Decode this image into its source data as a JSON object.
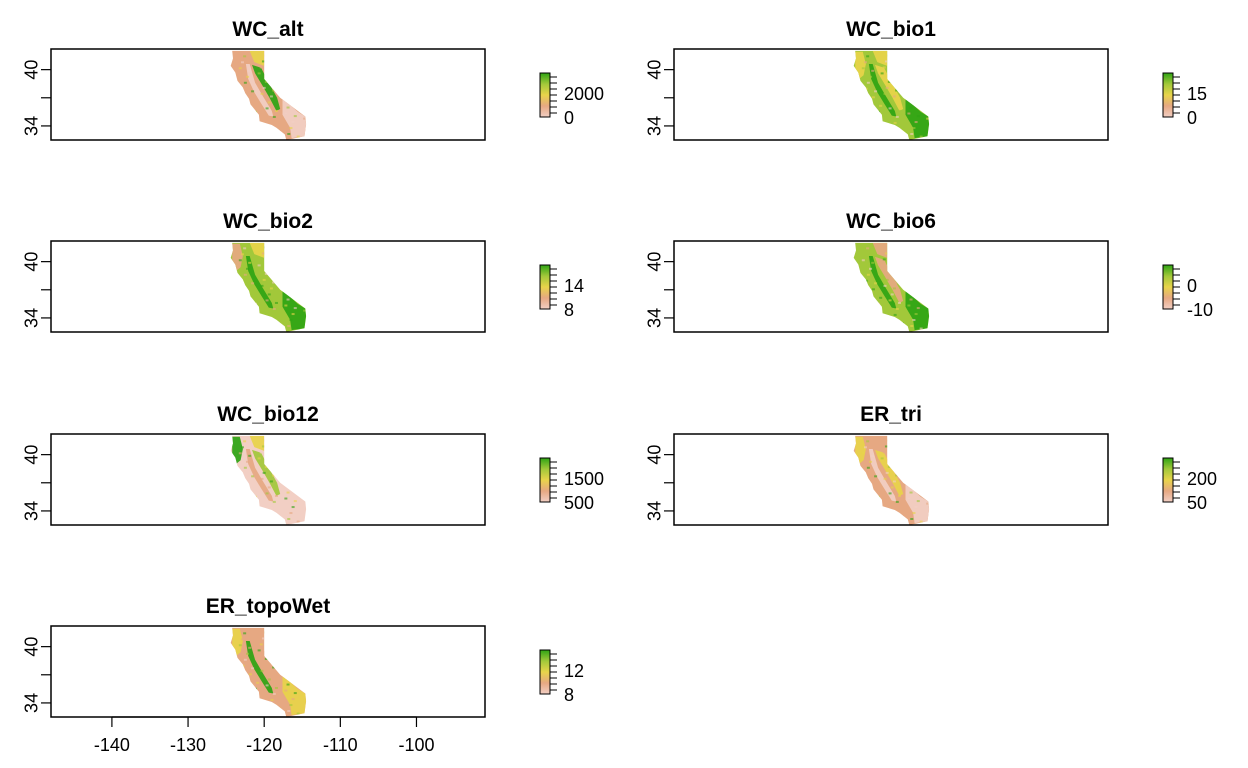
{
  "chart_data": {
    "type": "heatmap",
    "description_free": true,
    "x_axis": {
      "ticks": [
        -140,
        -130,
        -120,
        -110,
        -100
      ],
      "tick_labels": [
        "-140",
        "-130",
        "-120",
        "-110",
        "-100"
      ],
      "range": [
        -148,
        -91
      ]
    },
    "y_axis": {
      "ticks": [
        34,
        37,
        40
      ],
      "tick_labels": [
        "34",
        "",
        "40"
      ],
      "range": [
        32.5,
        42.2
      ]
    },
    "map_extent": {
      "lon": [
        -124.4,
        -114.1
      ],
      "lat": [
        32.5,
        42.0
      ]
    },
    "colors": {
      "low": "#f2cfc4",
      "mid1": "#e6a882",
      "mid2": "#e8d44a",
      "mid3": "#a2c83a",
      "high": "#2ea414"
    },
    "panels": [
      {
        "id": "alt",
        "title": "WC_alt",
        "legend_labels": [
          "2000",
          "0"
        ],
        "legend_values": [
          2000,
          0
        ],
        "pattern": "alt"
      },
      {
        "id": "bio1",
        "title": "WC_bio1",
        "legend_labels": [
          "15",
          "0"
        ],
        "legend_values": [
          15,
          0
        ],
        "pattern": "bio1"
      },
      {
        "id": "bio2",
        "title": "WC_bio2",
        "legend_labels": [
          "14",
          "8"
        ],
        "legend_values": [
          14,
          8
        ],
        "pattern": "bio2"
      },
      {
        "id": "bio6",
        "title": "WC_bio6",
        "legend_labels": [
          "0",
          "-10"
        ],
        "legend_values": [
          0,
          -10
        ],
        "pattern": "bio6"
      },
      {
        "id": "bio12",
        "title": "WC_bio12",
        "legend_labels": [
          "1500",
          "500"
        ],
        "legend_values": [
          1500,
          500
        ],
        "pattern": "bio12"
      },
      {
        "id": "tri",
        "title": "ER_tri",
        "legend_labels": [
          "200",
          "50"
        ],
        "legend_values": [
          200,
          50
        ],
        "pattern": "tri"
      },
      {
        "id": "topoWet",
        "title": "ER_topoWet",
        "legend_labels": [
          "12",
          "8"
        ],
        "legend_values": [
          12,
          8
        ],
        "pattern": "topoWet"
      }
    ]
  }
}
